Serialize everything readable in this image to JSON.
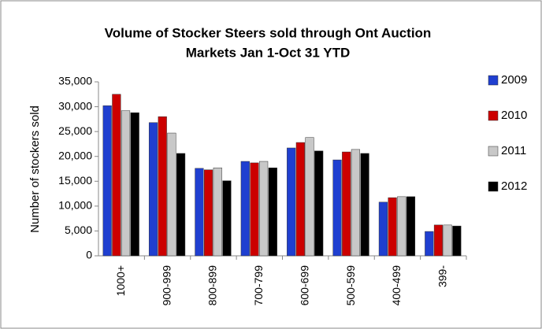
{
  "chart_data": {
    "type": "bar",
    "title": [
      "Volume of Stocker Steers sold through Ont Auction",
      "Markets Jan 1-Oct 31 YTD"
    ],
    "y_label": "Number of stockers sold",
    "categories": [
      "1000+",
      "900-999",
      "800-899",
      "700-799",
      "600-699",
      "500-599",
      "400-499",
      "399-"
    ],
    "series": [
      {
        "name": "2009",
        "color": "#1f3fd0",
        "values": [
          30200,
          26800,
          17600,
          19000,
          21700,
          19300,
          10800,
          4900
        ]
      },
      {
        "name": "2010",
        "color": "#cc0000",
        "values": [
          32500,
          28000,
          17300,
          18700,
          22800,
          20900,
          11700,
          6200
        ]
      },
      {
        "name": "2011",
        "color": "#c8c8c8",
        "values": [
          29200,
          24700,
          17700,
          19000,
          23800,
          21400,
          11900,
          6200
        ]
      },
      {
        "name": "2012",
        "color": "#000000",
        "values": [
          28800,
          20600,
          15100,
          17700,
          21100,
          20600,
          11900,
          6000
        ]
      }
    ],
    "ylim": [
      0,
      35000
    ],
    "yticks": [
      0,
      {
        "value": 5000,
        "label": "5,000"
      },
      {
        "value": 10000,
        "label": "10,000"
      },
      {
        "value": 15000,
        "label": "15,000"
      },
      {
        "value": 20000,
        "label": "20,000"
      },
      {
        "value": 25000,
        "label": "25,000"
      },
      {
        "value": 30000,
        "label": "30,000"
      },
      {
        "value": 35000,
        "label": "35,000"
      }
    ],
    "legend": "right"
  }
}
